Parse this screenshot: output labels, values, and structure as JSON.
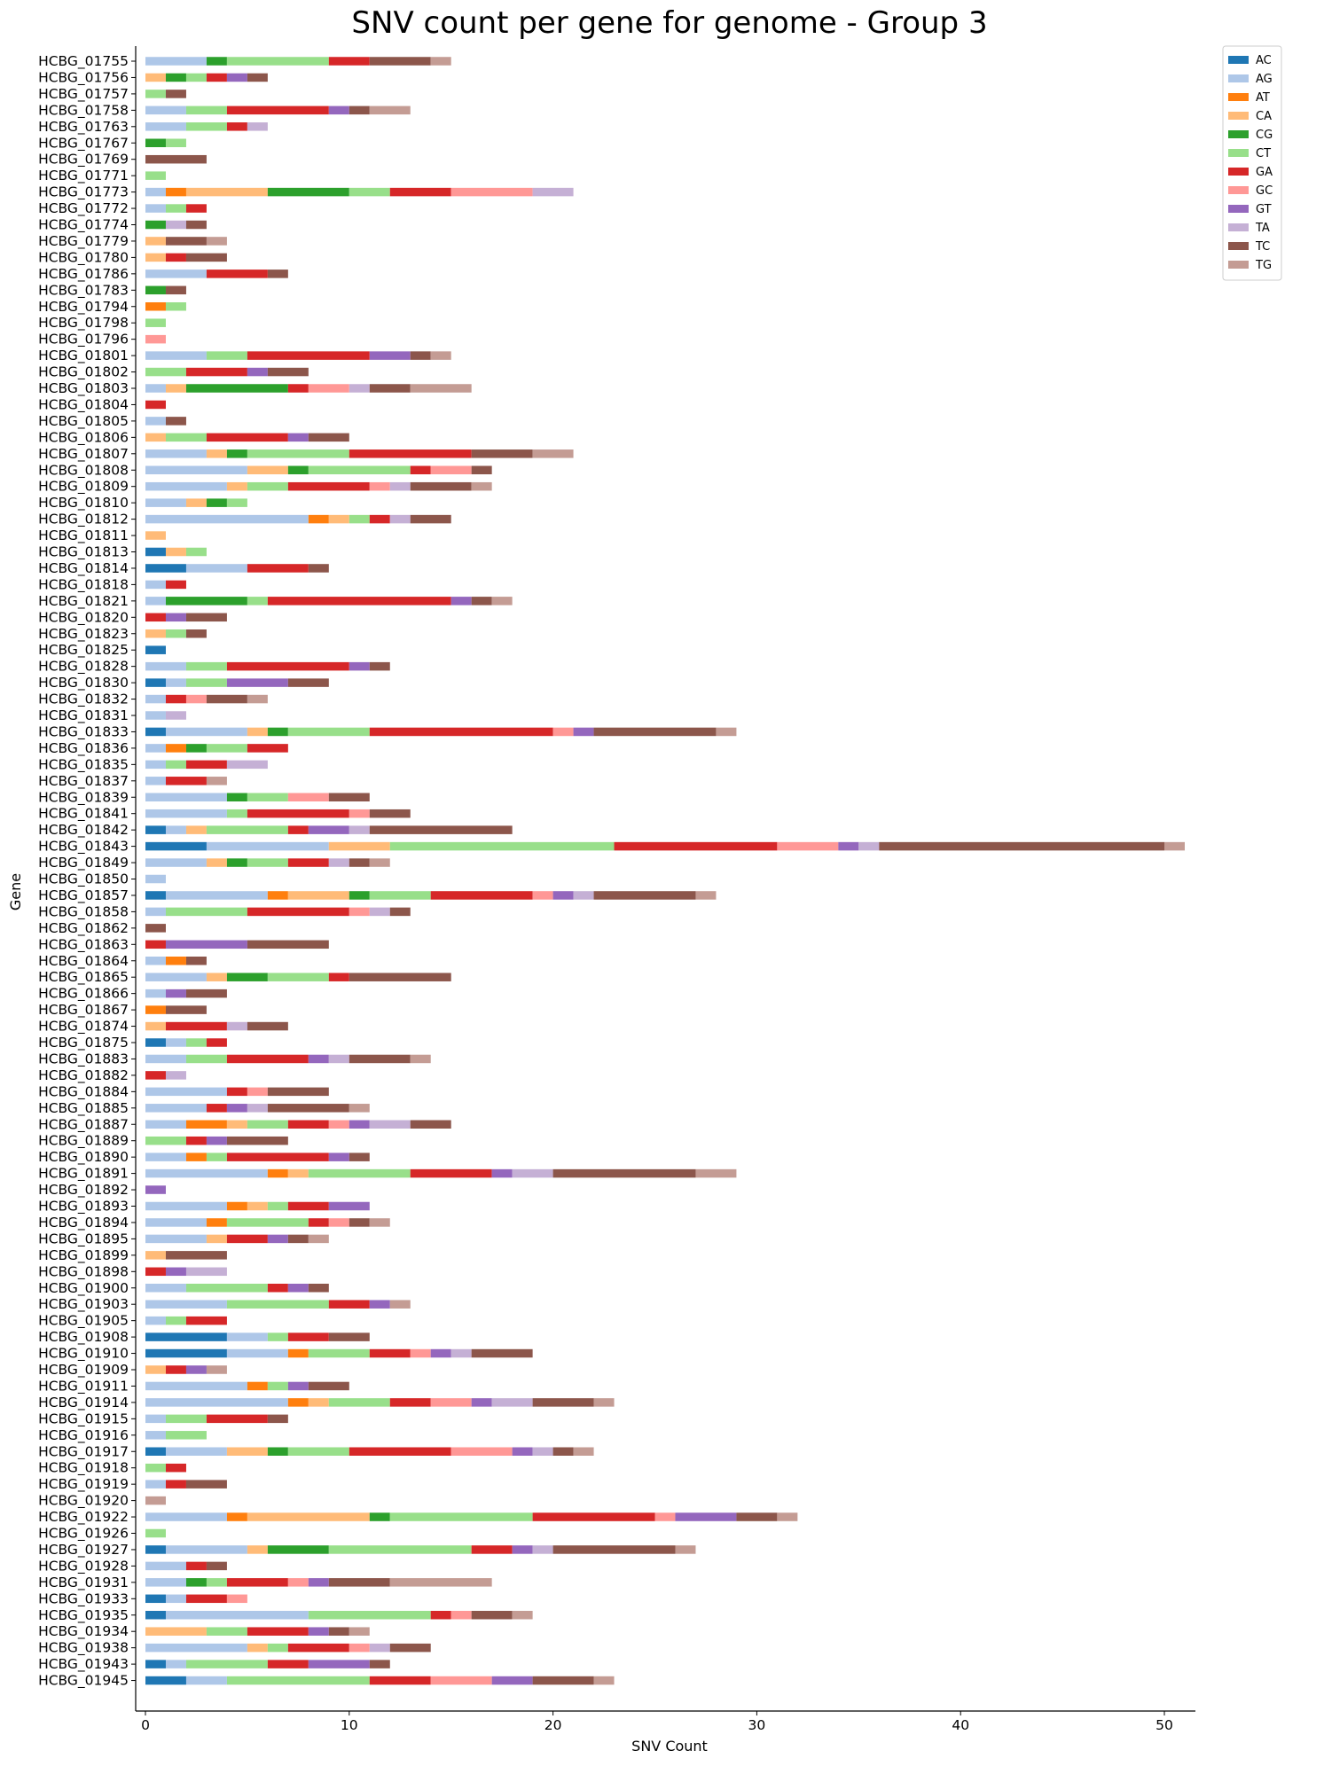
{
  "chart_data": {
    "type": "bar",
    "orientation": "horizontal",
    "stacked": true,
    "title": "SNV count per gene for genome - Group 3",
    "xlabel": "SNV Count",
    "ylabel": "Gene",
    "xlim": [
      0,
      51
    ],
    "x_ticks": [
      0,
      10,
      20,
      30,
      40,
      50
    ],
    "grid": false,
    "legend_position": "top-right outside",
    "categories": [
      "HCBG_01755",
      "HCBG_01756",
      "HCBG_01757",
      "HCBG_01758",
      "HCBG_01763",
      "HCBG_01767",
      "HCBG_01769",
      "HCBG_01771",
      "HCBG_01773",
      "HCBG_01772",
      "HCBG_01774",
      "HCBG_01779",
      "HCBG_01780",
      "HCBG_01786",
      "HCBG_01783",
      "HCBG_01794",
      "HCBG_01798",
      "HCBG_01796",
      "HCBG_01801",
      "HCBG_01802",
      "HCBG_01803",
      "HCBG_01804",
      "HCBG_01805",
      "HCBG_01806",
      "HCBG_01807",
      "HCBG_01808",
      "HCBG_01809",
      "HCBG_01810",
      "HCBG_01812",
      "HCBG_01811",
      "HCBG_01813",
      "HCBG_01814",
      "HCBG_01818",
      "HCBG_01821",
      "HCBG_01820",
      "HCBG_01823",
      "HCBG_01825",
      "HCBG_01828",
      "HCBG_01830",
      "HCBG_01832",
      "HCBG_01831",
      "HCBG_01833",
      "HCBG_01836",
      "HCBG_01835",
      "HCBG_01837",
      "HCBG_01839",
      "HCBG_01841",
      "HCBG_01842",
      "HCBG_01843",
      "HCBG_01849",
      "HCBG_01850",
      "HCBG_01857",
      "HCBG_01858",
      "HCBG_01862",
      "HCBG_01863",
      "HCBG_01864",
      "HCBG_01865",
      "HCBG_01866",
      "HCBG_01867",
      "HCBG_01874",
      "HCBG_01875",
      "HCBG_01883",
      "HCBG_01882",
      "HCBG_01884",
      "HCBG_01885",
      "HCBG_01887",
      "HCBG_01889",
      "HCBG_01890",
      "HCBG_01891",
      "HCBG_01892",
      "HCBG_01893",
      "HCBG_01894",
      "HCBG_01895",
      "HCBG_01899",
      "HCBG_01898",
      "HCBG_01900",
      "HCBG_01903",
      "HCBG_01905",
      "HCBG_01908",
      "HCBG_01910",
      "HCBG_01909",
      "HCBG_01911",
      "HCBG_01914",
      "HCBG_01915",
      "HCBG_01916",
      "HCBG_01917",
      "HCBG_01918",
      "HCBG_01919",
      "HCBG_01920",
      "HCBG_01922",
      "HCBG_01926",
      "HCBG_01927",
      "HCBG_01928",
      "HCBG_01931",
      "HCBG_01933",
      "HCBG_01935",
      "HCBG_01934",
      "HCBG_01938",
      "HCBG_01943",
      "HCBG_01945"
    ],
    "series": [
      {
        "name": "AC",
        "color": "#1f77b4",
        "values": [
          0,
          0,
          0,
          0,
          0,
          0,
          0,
          0,
          0,
          0,
          0,
          0,
          0,
          0,
          0,
          0,
          0,
          0,
          0,
          0,
          0,
          0,
          0,
          0,
          0,
          0,
          0,
          0,
          0,
          0,
          1,
          2,
          0,
          0,
          0,
          0,
          1,
          0,
          1,
          0,
          0,
          1,
          0,
          0,
          0,
          0,
          0,
          1,
          3,
          0,
          0,
          1,
          0,
          0,
          0,
          0,
          0,
          0,
          0,
          0,
          1,
          0,
          0,
          0,
          0,
          0,
          0,
          0,
          0,
          0,
          0,
          0,
          0,
          0,
          0,
          0,
          0,
          0,
          4,
          4,
          0,
          0,
          0,
          0,
          0,
          1,
          0,
          0,
          0,
          0,
          0,
          1,
          0,
          0,
          1,
          1,
          0,
          0,
          1,
          2
        ]
      },
      {
        "name": "AG",
        "color": "#aec7e8",
        "values": [
          3,
          0,
          0,
          2,
          2,
          0,
          0,
          0,
          1,
          1,
          0,
          0,
          0,
          3,
          0,
          0,
          0,
          0,
          3,
          0,
          1,
          0,
          1,
          0,
          3,
          5,
          4,
          2,
          8,
          0,
          0,
          3,
          1,
          1,
          0,
          0,
          0,
          2,
          1,
          1,
          1,
          4,
          1,
          1,
          1,
          4,
          4,
          1,
          6,
          3,
          1,
          5,
          1,
          0,
          0,
          1,
          3,
          1,
          0,
          0,
          1,
          2,
          0,
          4,
          3,
          2,
          0,
          2,
          6,
          0,
          4,
          3,
          3,
          0,
          0,
          2,
          4,
          1,
          2,
          3,
          0,
          5,
          7,
          1,
          1,
          3,
          0,
          1,
          0,
          4,
          0,
          4,
          2,
          2,
          1,
          7,
          0,
          5,
          1,
          2
        ]
      },
      {
        "name": "AT",
        "color": "#ff7f0e",
        "values": [
          0,
          0,
          0,
          0,
          0,
          0,
          0,
          0,
          1,
          0,
          0,
          0,
          0,
          0,
          0,
          1,
          0,
          0,
          0,
          0,
          0,
          0,
          0,
          0,
          0,
          0,
          0,
          0,
          1,
          0,
          0,
          0,
          0,
          0,
          0,
          0,
          0,
          0,
          0,
          0,
          0,
          0,
          1,
          0,
          0,
          0,
          0,
          0,
          0,
          0,
          0,
          1,
          0,
          0,
          0,
          1,
          0,
          0,
          1,
          0,
          0,
          0,
          0,
          0,
          0,
          2,
          0,
          1,
          1,
          0,
          1,
          1,
          0,
          0,
          0,
          0,
          0,
          0,
          0,
          1,
          0,
          1,
          1,
          0,
          0,
          0,
          0,
          0,
          0,
          1,
          0,
          0,
          0,
          0,
          0,
          0,
          0,
          0,
          0,
          0
        ]
      },
      {
        "name": "CA",
        "color": "#ffbb78",
        "values": [
          0,
          1,
          0,
          0,
          0,
          0,
          0,
          0,
          4,
          0,
          0,
          1,
          1,
          0,
          0,
          0,
          0,
          0,
          0,
          0,
          1,
          0,
          0,
          1,
          1,
          2,
          1,
          1,
          1,
          1,
          1,
          0,
          0,
          0,
          0,
          1,
          0,
          0,
          0,
          0,
          0,
          1,
          0,
          0,
          0,
          0,
          0,
          1,
          3,
          1,
          0,
          3,
          0,
          0,
          0,
          0,
          1,
          0,
          0,
          1,
          0,
          0,
          0,
          0,
          0,
          1,
          0,
          0,
          1,
          0,
          1,
          0,
          1,
          1,
          0,
          0,
          0,
          0,
          0,
          0,
          1,
          0,
          1,
          0,
          0,
          2,
          0,
          0,
          0,
          6,
          0,
          1,
          0,
          0,
          0,
          0,
          3,
          1,
          0,
          0
        ]
      },
      {
        "name": "CG",
        "color": "#2ca02c",
        "values": [
          1,
          1,
          0,
          0,
          0,
          1,
          0,
          0,
          4,
          0,
          1,
          0,
          0,
          0,
          1,
          0,
          0,
          0,
          0,
          0,
          5,
          0,
          0,
          0,
          1,
          1,
          0,
          1,
          0,
          0,
          0,
          0,
          0,
          4,
          0,
          0,
          0,
          0,
          0,
          0,
          0,
          1,
          1,
          0,
          0,
          1,
          0,
          0,
          0,
          1,
          0,
          1,
          0,
          0,
          0,
          0,
          2,
          0,
          0,
          0,
          0,
          0,
          0,
          0,
          0,
          0,
          0,
          0,
          0,
          0,
          0,
          0,
          0,
          0,
          0,
          0,
          0,
          0,
          0,
          0,
          0,
          0,
          0,
          0,
          0,
          1,
          0,
          0,
          0,
          1,
          0,
          3,
          0,
          1,
          0,
          0,
          0,
          0,
          0,
          0
        ]
      },
      {
        "name": "CT",
        "color": "#98df8a",
        "values": [
          5,
          1,
          1,
          2,
          2,
          1,
          0,
          1,
          2,
          1,
          0,
          0,
          0,
          0,
          0,
          1,
          1,
          0,
          2,
          2,
          0,
          0,
          0,
          2,
          5,
          5,
          2,
          1,
          1,
          0,
          1,
          0,
          0,
          1,
          0,
          1,
          0,
          2,
          2,
          0,
          0,
          4,
          2,
          1,
          0,
          2,
          1,
          4,
          11,
          2,
          0,
          3,
          4,
          0,
          0,
          0,
          3,
          0,
          0,
          0,
          1,
          2,
          0,
          0,
          0,
          2,
          2,
          1,
          5,
          0,
          1,
          4,
          0,
          0,
          0,
          4,
          5,
          1,
          1,
          3,
          0,
          1,
          3,
          2,
          2,
          3,
          1,
          0,
          0,
          7,
          1,
          7,
          0,
          1,
          0,
          6,
          2,
          1,
          4,
          7
        ]
      },
      {
        "name": "GA",
        "color": "#d62728",
        "values": [
          2,
          1,
          0,
          5,
          1,
          0,
          0,
          0,
          3,
          1,
          0,
          0,
          1,
          3,
          0,
          0,
          0,
          0,
          6,
          3,
          1,
          1,
          0,
          4,
          6,
          1,
          4,
          0,
          1,
          0,
          0,
          3,
          1,
          9,
          1,
          0,
          0,
          6,
          0,
          1,
          0,
          9,
          2,
          2,
          2,
          0,
          5,
          1,
          8,
          2,
          0,
          5,
          5,
          0,
          1,
          0,
          1,
          0,
          0,
          3,
          1,
          4,
          1,
          1,
          1,
          2,
          1,
          5,
          4,
          0,
          2,
          1,
          2,
          0,
          1,
          1,
          2,
          2,
          2,
          2,
          1,
          0,
          2,
          3,
          0,
          5,
          1,
          1,
          0,
          6,
          0,
          2,
          1,
          3,
          2,
          1,
          3,
          3,
          2,
          3
        ]
      },
      {
        "name": "GC",
        "color": "#ff9896",
        "values": [
          0,
          0,
          0,
          0,
          0,
          0,
          0,
          0,
          4,
          0,
          0,
          0,
          0,
          0,
          0,
          0,
          0,
          1,
          0,
          0,
          2,
          0,
          0,
          0,
          0,
          2,
          1,
          0,
          0,
          0,
          0,
          0,
          0,
          0,
          0,
          0,
          0,
          0,
          0,
          1,
          0,
          1,
          0,
          0,
          0,
          2,
          1,
          0,
          3,
          0,
          0,
          1,
          1,
          0,
          0,
          0,
          0,
          0,
          0,
          0,
          0,
          0,
          0,
          1,
          0,
          1,
          0,
          0,
          0,
          0,
          0,
          1,
          0,
          0,
          0,
          0,
          0,
          0,
          0,
          1,
          0,
          0,
          2,
          0,
          0,
          3,
          0,
          0,
          0,
          1,
          0,
          0,
          0,
          1,
          1,
          1,
          0,
          1,
          0,
          3
        ]
      },
      {
        "name": "GT",
        "color": "#9467bd",
        "values": [
          0,
          1,
          0,
          1,
          0,
          0,
          0,
          0,
          0,
          0,
          0,
          0,
          0,
          0,
          0,
          0,
          0,
          0,
          2,
          1,
          0,
          0,
          0,
          1,
          0,
          0,
          0,
          0,
          0,
          0,
          0,
          0,
          0,
          1,
          1,
          0,
          0,
          1,
          3,
          0,
          0,
          1,
          0,
          0,
          0,
          0,
          0,
          2,
          1,
          0,
          0,
          1,
          0,
          0,
          4,
          0,
          0,
          1,
          0,
          0,
          0,
          1,
          0,
          0,
          1,
          1,
          1,
          1,
          1,
          1,
          2,
          0,
          1,
          0,
          1,
          1,
          1,
          0,
          0,
          1,
          1,
          1,
          1,
          0,
          0,
          1,
          0,
          0,
          0,
          3,
          0,
          1,
          0,
          1,
          0,
          0,
          1,
          0,
          3,
          2
        ]
      },
      {
        "name": "TA",
        "color": "#c5b0d5",
        "values": [
          0,
          0,
          0,
          0,
          1,
          0,
          0,
          0,
          2,
          0,
          1,
          0,
          0,
          0,
          0,
          0,
          0,
          0,
          0,
          0,
          1,
          0,
          0,
          0,
          0,
          0,
          1,
          0,
          1,
          0,
          0,
          0,
          0,
          0,
          0,
          0,
          0,
          0,
          0,
          0,
          1,
          0,
          0,
          2,
          0,
          0,
          0,
          1,
          1,
          1,
          0,
          1,
          1,
          0,
          0,
          0,
          0,
          0,
          0,
          1,
          0,
          1,
          1,
          0,
          1,
          2,
          0,
          0,
          2,
          0,
          0,
          0,
          0,
          0,
          2,
          0,
          0,
          0,
          0,
          1,
          0,
          0,
          2,
          0,
          0,
          1,
          0,
          0,
          0,
          0,
          0,
          1,
          0,
          0,
          0,
          0,
          0,
          1,
          0,
          0
        ]
      },
      {
        "name": "TC",
        "color": "#8c564b",
        "values": [
          3,
          1,
          1,
          1,
          0,
          0,
          3,
          0,
          0,
          0,
          1,
          2,
          2,
          1,
          1,
          0,
          0,
          0,
          1,
          2,
          2,
          0,
          1,
          2,
          3,
          1,
          3,
          0,
          2,
          0,
          0,
          1,
          0,
          1,
          2,
          1,
          0,
          1,
          2,
          2,
          0,
          6,
          0,
          0,
          0,
          2,
          2,
          7,
          14,
          1,
          0,
          5,
          1,
          1,
          4,
          1,
          5,
          2,
          2,
          2,
          0,
          3,
          0,
          3,
          4,
          2,
          3,
          1,
          7,
          0,
          0,
          1,
          1,
          3,
          0,
          1,
          0,
          0,
          2,
          3,
          0,
          2,
          3,
          1,
          0,
          1,
          0,
          2,
          0,
          2,
          0,
          6,
          1,
          3,
          0,
          2,
          1,
          2,
          1,
          3
        ]
      },
      {
        "name": "TG",
        "color": "#c49c94",
        "values": [
          1,
          0,
          0,
          2,
          0,
          0,
          0,
          0,
          0,
          0,
          0,
          1,
          0,
          0,
          0,
          0,
          0,
          0,
          1,
          0,
          3,
          0,
          0,
          0,
          2,
          0,
          1,
          0,
          0,
          0,
          0,
          0,
          0,
          1,
          0,
          0,
          0,
          0,
          0,
          1,
          0,
          1,
          0,
          0,
          1,
          0,
          0,
          0,
          1,
          1,
          0,
          1,
          0,
          0,
          0,
          0,
          0,
          0,
          0,
          0,
          0,
          1,
          0,
          0,
          1,
          0,
          0,
          0,
          2,
          0,
          0,
          1,
          1,
          0,
          0,
          0,
          1,
          0,
          0,
          0,
          1,
          0,
          1,
          0,
          0,
          1,
          0,
          0,
          1,
          1,
          0,
          1,
          0,
          5,
          0,
          1,
          1,
          0,
          0,
          1
        ]
      }
    ]
  }
}
